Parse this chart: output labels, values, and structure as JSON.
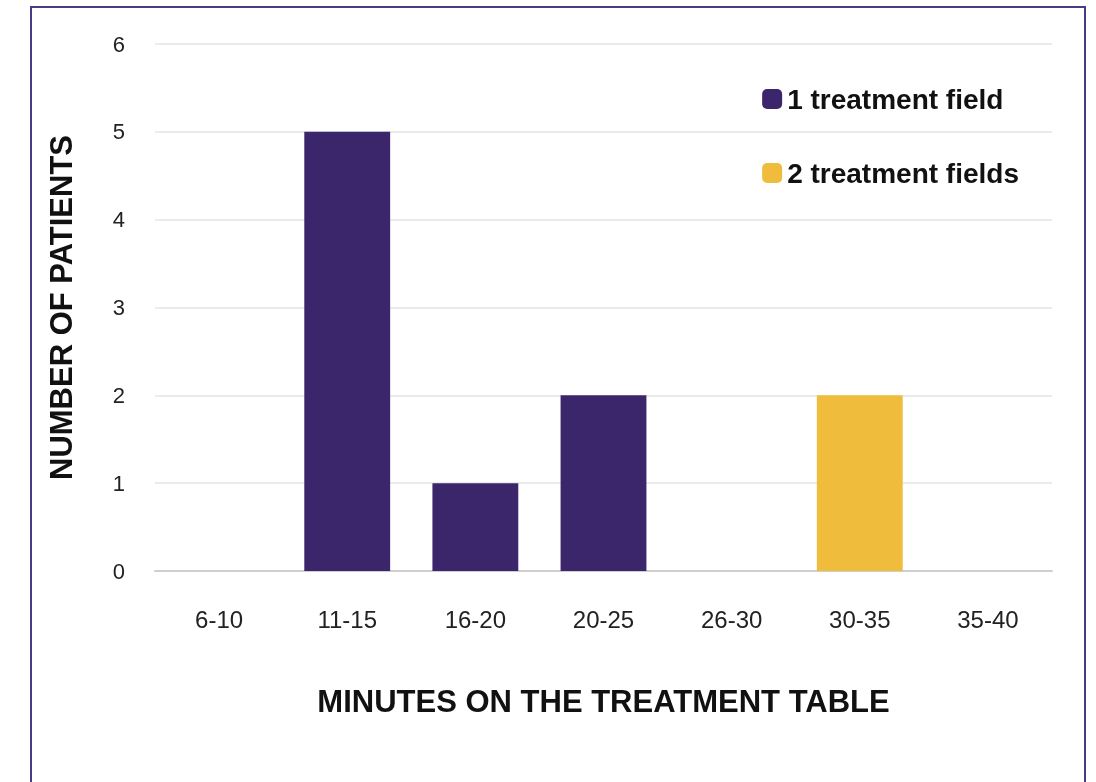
{
  "chart_data": {
    "type": "bar",
    "xlabel": "MINUTES ON THE TREATMENT TABLE",
    "ylabel": "NUMBER OF PATIENTS",
    "categories": [
      "6-10",
      "11-15",
      "16-20",
      "20-25",
      "26-30",
      "30-35",
      "35-40"
    ],
    "series": [
      {
        "name": "1 treatment field",
        "color": "#3b266b",
        "values": [
          null,
          5,
          1,
          2,
          null,
          null,
          null
        ]
      },
      {
        "name": "2 treatment fields",
        "color": "#f0bc3c",
        "values": [
          null,
          null,
          null,
          null,
          null,
          2,
          null
        ]
      }
    ],
    "stacked": true,
    "ylim": [
      0,
      6
    ],
    "yticks": [
      0,
      1,
      2,
      3,
      4,
      5,
      6
    ],
    "grid": "y",
    "legend": "top right"
  }
}
